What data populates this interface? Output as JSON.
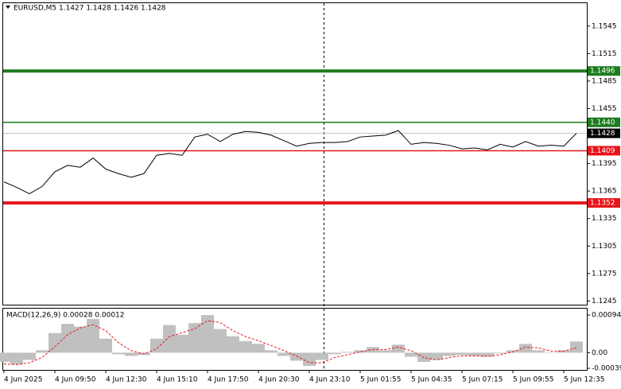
{
  "chart_data": [
    {
      "type": "line",
      "title": "EURUSD,M5  1.1427 1.1428 1.1426 1.1428",
      "categories": [
        "4 Jun 2025",
        null,
        null,
        null,
        "4 Jun 09:50",
        null,
        null,
        null,
        "4 Jun 12:30",
        null,
        null,
        null,
        "4 Jun 15:10",
        null,
        null,
        null,
        "4 Jun 17:50",
        null,
        null,
        null,
        "4 Jun 20:30",
        null,
        null,
        null,
        "4 Jun 23:10",
        null,
        null,
        null,
        "5 Jun 01:55",
        null,
        null,
        null,
        "5 Jun 04:35",
        null,
        null,
        null,
        "5 Jun 07:15",
        null,
        null,
        null,
        "5 Jun 09:55",
        null,
        null,
        null,
        "5 Jun 12:35",
        null
      ],
      "values": [
        1.1375,
        1.1369,
        1.1362,
        1.137,
        1.1386,
        1.1393,
        1.1391,
        1.1401,
        1.1389,
        1.1384,
        1.138,
        1.1384,
        1.1404,
        1.1406,
        1.1404,
        1.1424,
        1.1427,
        1.1419,
        1.1427,
        1.143,
        1.1429,
        1.1426,
        1.142,
        1.1414,
        1.1417,
        1.1418,
        1.1418,
        1.1419,
        1.1424,
        1.1425,
        1.1426,
        1.1431,
        1.1416,
        1.1418,
        1.1417,
        1.1415,
        1.1411,
        1.1412,
        1.141,
        1.1416,
        1.1413,
        1.1419,
        1.1414,
        1.1415,
        1.1414,
        1.1428
      ],
      "color": "#000000",
      "last": 1.1428,
      "levels": [
        {
          "value": 1.1496,
          "color": "#1e7b1e",
          "thick": true
        },
        {
          "value": 1.144,
          "label": "1.1440",
          "color": "#1e7b1e",
          "thick": false
        },
        {
          "value": 1.1409,
          "color": "#e8141b",
          "thick": false
        },
        {
          "value": 1.1352,
          "color": "#e8141b",
          "thick": true
        }
      ],
      "ylim": [
        1.1241,
        1.157
      ],
      "yticks": [
        1.1545,
        1.1515,
        1.1485,
        1.1455,
        1.1395,
        1.1365,
        1.1335,
        1.1305,
        1.1275,
        1.1245
      ]
    },
    {
      "type": "macd",
      "title": "MACD(12,26,9) 0.00028 0.00012",
      "series": [
        {
          "name": "MACD",
          "color": "#c0c0c0",
          "values": [
            -0.00023,
            -0.00029,
            -0.00018,
            6e-05,
            0.00049,
            0.00072,
            0.00065,
            0.00084,
            0.00035,
            -4e-05,
            -8e-05,
            -6e-05,
            0.00035,
            0.00069,
            0.00045,
            0.00074,
            0.00094,
            0.00059,
            0.00041,
            0.00029,
            0.00022,
            6e-05,
            -8e-05,
            -0.0002,
            -0.00033,
            -0.00018,
            -4e-05,
            2e-05,
            6e-05,
            0.00014,
            6e-05,
            0.0002,
            -0.0001,
            -0.00023,
            -0.00018,
            -8e-05,
            -6e-05,
            -8e-05,
            -0.0001,
            -2e-05,
            6e-05,
            0.00022,
            6e-05,
            0.0,
            6e-05,
            0.00028
          ]
        },
        {
          "name": "Signal",
          "color": "#e8141b",
          "values": [
            -0.00028,
            -0.0003,
            -0.00025,
            -0.00012,
            0.00015,
            0.00045,
            0.00062,
            0.0007,
            0.00055,
            0.00025,
            5e-05,
            -3e-05,
            0.0001,
            0.0004,
            0.0005,
            0.0006,
            0.0008,
            0.00075,
            0.00055,
            0.0004,
            0.0003,
            0.00018,
            5e-05,
            -8e-05,
            -0.00025,
            -0.00025,
            -0.00012,
            -5e-05,
            2e-05,
            8e-05,
            8e-05,
            0.00014,
            5e-05,
            -0.00012,
            -0.00018,
            -0.00012,
            -8e-05,
            -8e-05,
            -9e-05,
            -5e-05,
            2e-05,
            0.00014,
            0.00012,
            4e-05,
            4e-05,
            0.00012
          ]
        }
      ],
      "ylim": [
        -0.00043,
        0.0011
      ],
      "yticks": [
        0.00094,
        {
          "value": 0,
          "label": "0.00"
        },
        -0.00039
      ]
    }
  ]
}
